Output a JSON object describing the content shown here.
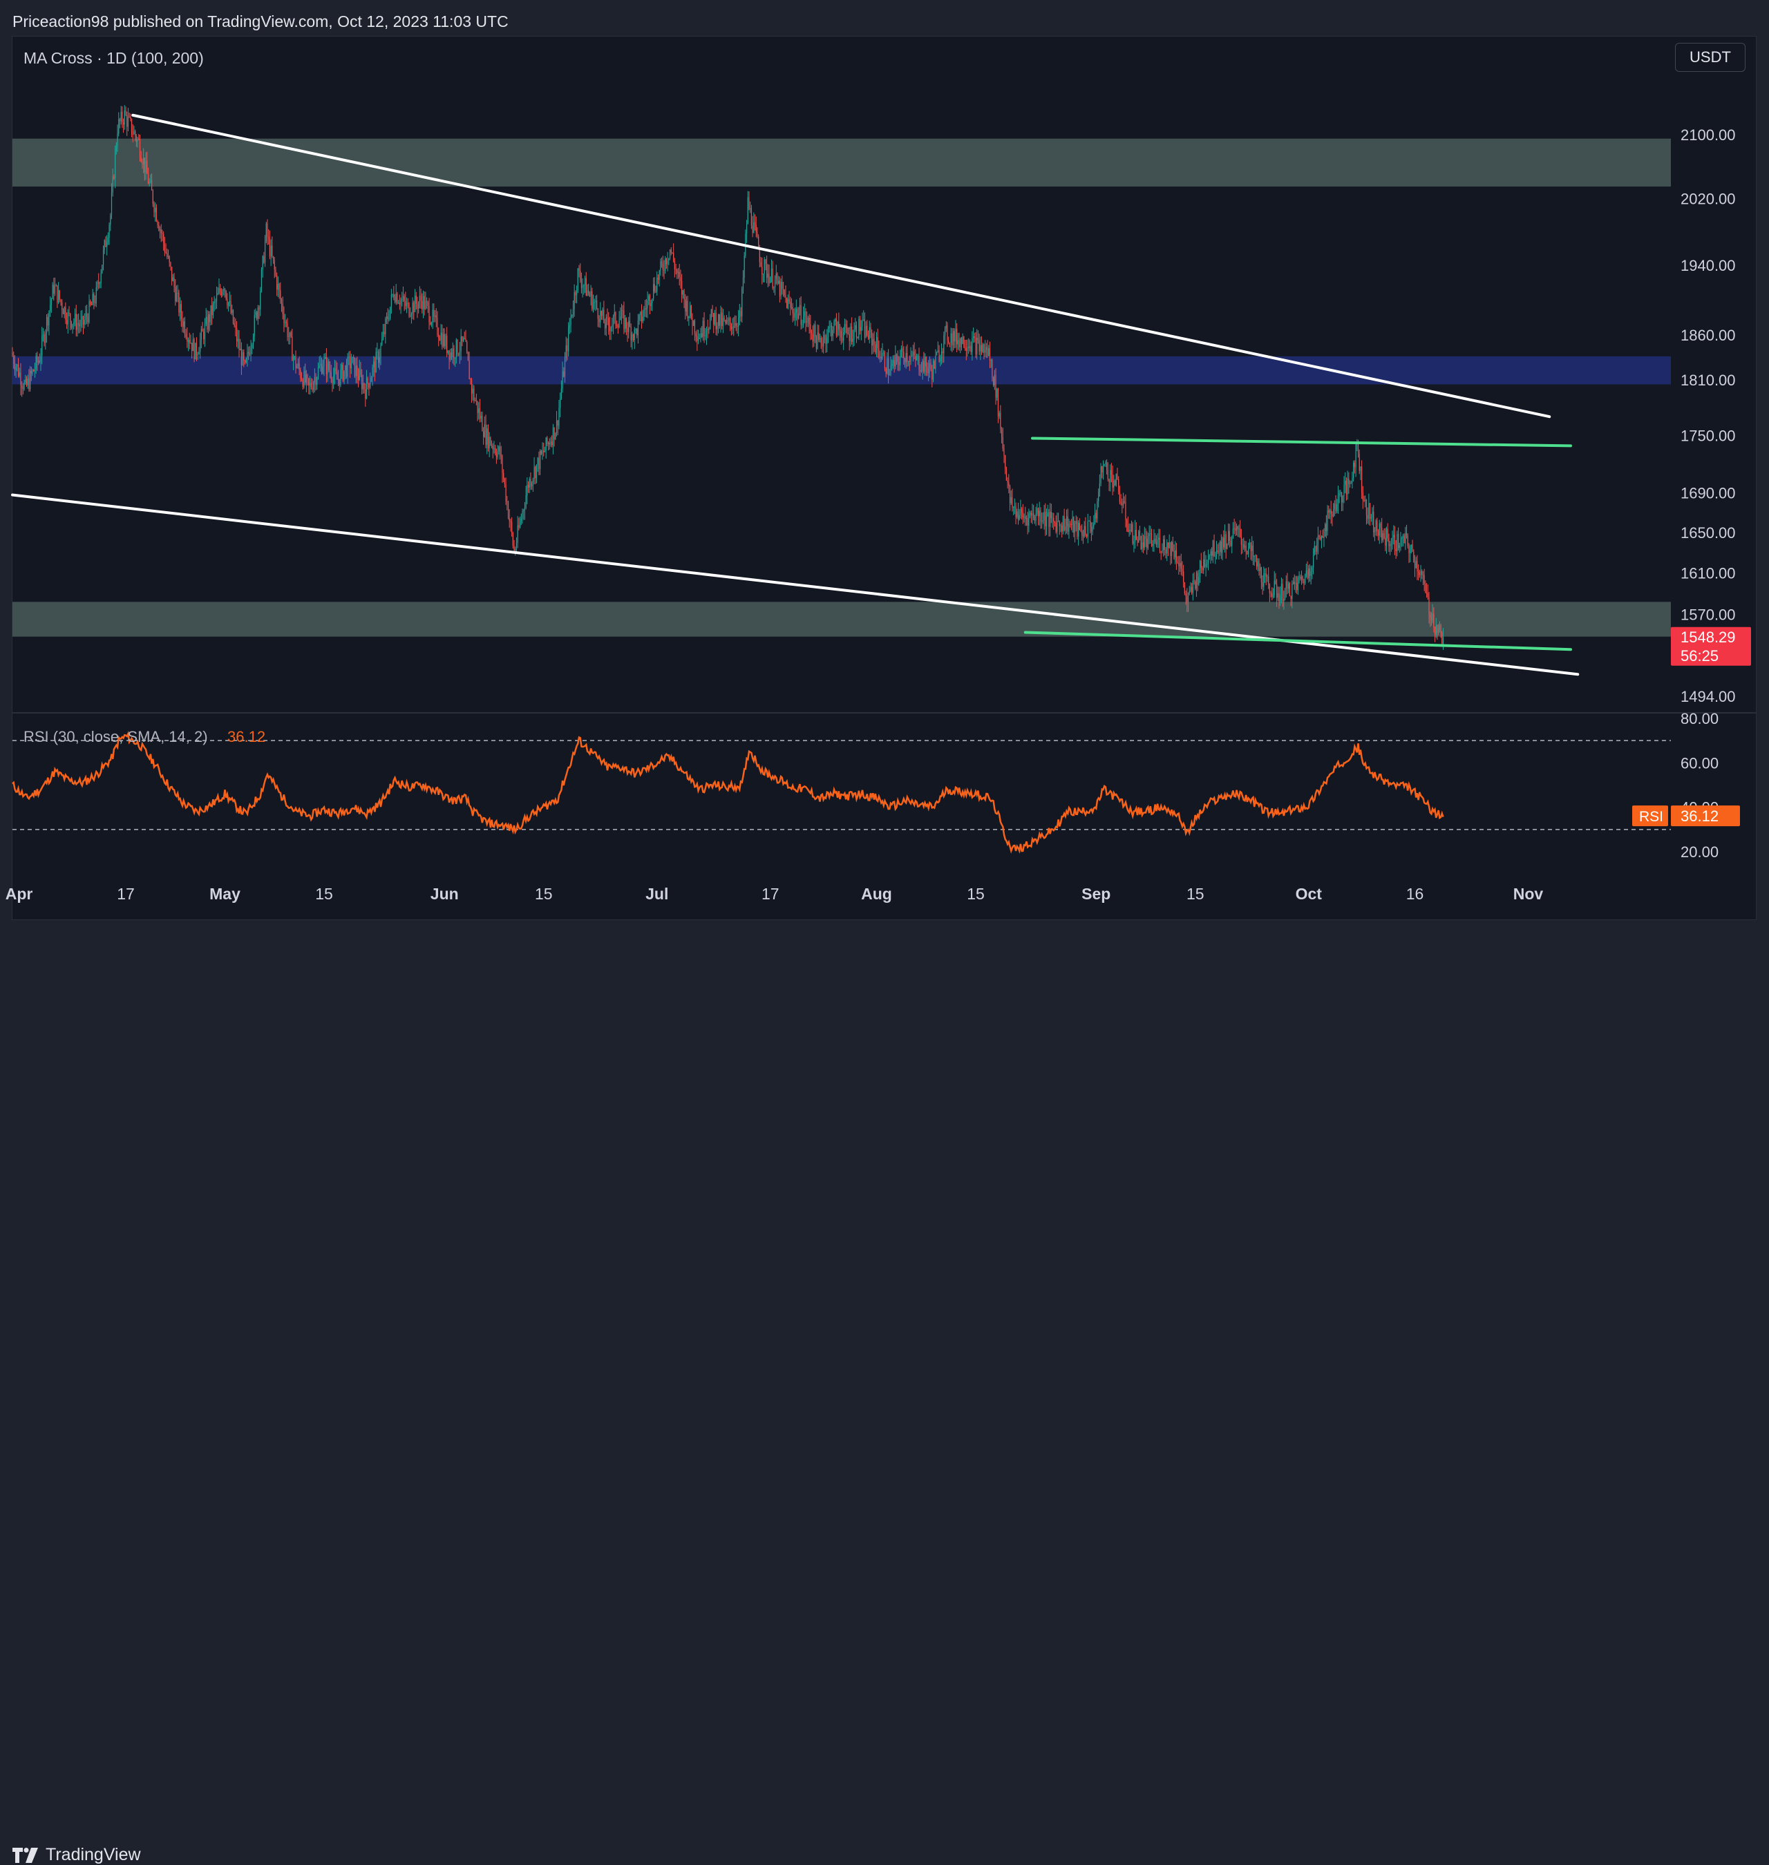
{
  "header": {
    "publisher": "Priceaction98 published on TradingView.com, Oct 12, 2023 11:03 UTC"
  },
  "chart": {
    "indicator_label": "MA Cross · 1D (100, 200)",
    "currency": "USDT",
    "price_tag": {
      "value": "1548.29",
      "countdown": "56:25"
    },
    "rsi": {
      "label": "RSI (30, close, SMA, 14, 2)",
      "value": "36.12",
      "tag_label": "RSI",
      "tag_value": "36.12"
    }
  },
  "footer": {
    "brand": "TradingView"
  },
  "colors": {
    "background": "#131722",
    "candle_up": "#26a69a",
    "candle_down": "#ef5350",
    "rsi_line": "#f7631b",
    "zone_gray": "#4a5a58",
    "zone_blue": "#1e2a6e",
    "trendline": "#ffffff",
    "range_line": "#4ee08e",
    "price_tag": "#f23645"
  },
  "chart_data": {
    "type": "candlestick",
    "x_ticks": [
      "Apr",
      "17",
      "May",
      "15",
      "Jun",
      "15",
      "Jul",
      "17",
      "Aug",
      "15",
      "Sep",
      "15",
      "Oct",
      "16",
      "Nov"
    ],
    "price_axis": {
      "ticks": [
        "2100.00",
        "2020.00",
        "1940.00",
        "1860.00",
        "1810.00",
        "1750.00",
        "1690.00",
        "1650.00",
        "1610.00",
        "1570.00",
        "1494.00"
      ],
      "scale": "log"
    },
    "rsi_axis": {
      "ticks": [
        "80.00",
        "60.00",
        "40.00",
        "20.00"
      ],
      "range": [
        20,
        80
      ],
      "bands": [
        70,
        30
      ]
    },
    "anchors": [
      {
        "d": 0,
        "p": 1840,
        "r": 50
      },
      {
        "d": 2,
        "p": 1800,
        "r": 44
      },
      {
        "d": 4,
        "p": 1835,
        "r": 48
      },
      {
        "d": 6,
        "p": 1915,
        "r": 56
      },
      {
        "d": 8,
        "p": 1880,
        "r": 52
      },
      {
        "d": 10,
        "p": 1870,
        "r": 51
      },
      {
        "d": 12,
        "p": 1905,
        "r": 55
      },
      {
        "d": 14,
        "p": 2000,
        "r": 62
      },
      {
        "d": 15,
        "p": 2110,
        "r": 70
      },
      {
        "d": 16,
        "p": 2125,
        "r": 72
      },
      {
        "d": 18,
        "p": 2090,
        "r": 68
      },
      {
        "d": 20,
        "p": 2020,
        "r": 60
      },
      {
        "d": 22,
        "p": 1950,
        "r": 50
      },
      {
        "d": 24,
        "p": 1880,
        "r": 42
      },
      {
        "d": 26,
        "p": 1840,
        "r": 38
      },
      {
        "d": 28,
        "p": 1880,
        "r": 41
      },
      {
        "d": 30,
        "p": 1920,
        "r": 46
      },
      {
        "d": 32,
        "p": 1850,
        "r": 39
      },
      {
        "d": 33,
        "p": 1820,
        "r": 37
      },
      {
        "d": 35,
        "p": 1900,
        "r": 46
      },
      {
        "d": 36,
        "p": 1980,
        "r": 55
      },
      {
        "d": 38,
        "p": 1900,
        "r": 45
      },
      {
        "d": 40,
        "p": 1830,
        "r": 38
      },
      {
        "d": 42,
        "p": 1800,
        "r": 36
      },
      {
        "d": 44,
        "p": 1830,
        "r": 39
      },
      {
        "d": 46,
        "p": 1810,
        "r": 37
      },
      {
        "d": 48,
        "p": 1830,
        "r": 40
      },
      {
        "d": 50,
        "p": 1800,
        "r": 37
      },
      {
        "d": 52,
        "p": 1840,
        "r": 42
      },
      {
        "d": 54,
        "p": 1910,
        "r": 52
      },
      {
        "d": 56,
        "p": 1890,
        "r": 49
      },
      {
        "d": 58,
        "p": 1900,
        "r": 50
      },
      {
        "d": 60,
        "p": 1870,
        "r": 47
      },
      {
        "d": 62,
        "p": 1840,
        "r": 43
      },
      {
        "d": 64,
        "p": 1850,
        "r": 44
      },
      {
        "d": 65,
        "p": 1800,
        "r": 38
      },
      {
        "d": 67,
        "p": 1750,
        "r": 33
      },
      {
        "d": 69,
        "p": 1730,
        "r": 32
      },
      {
        "d": 71,
        "p": 1630,
        "r": 30
      },
      {
        "d": 73,
        "p": 1700,
        "r": 36
      },
      {
        "d": 75,
        "p": 1730,
        "r": 40
      },
      {
        "d": 77,
        "p": 1760,
        "r": 44
      },
      {
        "d": 79,
        "p": 1880,
        "r": 62
      },
      {
        "d": 80,
        "p": 1930,
        "r": 70
      },
      {
        "d": 82,
        "p": 1900,
        "r": 64
      },
      {
        "d": 84,
        "p": 1870,
        "r": 58
      },
      {
        "d": 86,
        "p": 1880,
        "r": 58
      },
      {
        "d": 88,
        "p": 1860,
        "r": 55
      },
      {
        "d": 90,
        "p": 1900,
        "r": 58
      },
      {
        "d": 92,
        "p": 1940,
        "r": 62
      },
      {
        "d": 93,
        "p": 1960,
        "r": 62
      },
      {
        "d": 95,
        "p": 1900,
        "r": 55
      },
      {
        "d": 97,
        "p": 1860,
        "r": 48
      },
      {
        "d": 99,
        "p": 1880,
        "r": 50
      },
      {
        "d": 101,
        "p": 1870,
        "r": 49
      },
      {
        "d": 103,
        "p": 1880,
        "r": 50
      },
      {
        "d": 104,
        "p": 2015,
        "r": 66
      },
      {
        "d": 106,
        "p": 1940,
        "r": 56
      },
      {
        "d": 108,
        "p": 1920,
        "r": 53
      },
      {
        "d": 110,
        "p": 1890,
        "r": 49
      },
      {
        "d": 112,
        "p": 1880,
        "r": 48
      },
      {
        "d": 114,
        "p": 1850,
        "r": 44
      },
      {
        "d": 116,
        "p": 1870,
        "r": 46
      },
      {
        "d": 118,
        "p": 1860,
        "r": 45
      },
      {
        "d": 120,
        "p": 1870,
        "r": 46
      },
      {
        "d": 122,
        "p": 1850,
        "r": 44
      },
      {
        "d": 124,
        "p": 1820,
        "r": 40
      },
      {
        "d": 126,
        "p": 1840,
        "r": 43
      },
      {
        "d": 128,
        "p": 1830,
        "r": 41
      },
      {
        "d": 130,
        "p": 1820,
        "r": 40
      },
      {
        "d": 132,
        "p": 1860,
        "r": 48
      },
      {
        "d": 134,
        "p": 1855,
        "r": 47
      },
      {
        "d": 136,
        "p": 1850,
        "r": 46
      },
      {
        "d": 138,
        "p": 1840,
        "r": 44
      },
      {
        "d": 139,
        "p": 1800,
        "r": 38
      },
      {
        "d": 140,
        "p": 1740,
        "r": 28
      },
      {
        "d": 141,
        "p": 1680,
        "r": 22
      },
      {
        "d": 142,
        "p": 1670,
        "r": 21
      },
      {
        "d": 143,
        "p": 1665,
        "r": 23
      },
      {
        "d": 145,
        "p": 1670,
        "r": 26
      },
      {
        "d": 147,
        "p": 1660,
        "r": 30
      },
      {
        "d": 149,
        "p": 1660,
        "r": 38
      },
      {
        "d": 151,
        "p": 1650,
        "r": 38
      },
      {
        "d": 153,
        "p": 1660,
        "r": 40
      },
      {
        "d": 154,
        "p": 1720,
        "r": 48
      },
      {
        "d": 156,
        "p": 1700,
        "r": 44
      },
      {
        "d": 158,
        "p": 1650,
        "r": 38
      },
      {
        "d": 160,
        "p": 1640,
        "r": 38
      },
      {
        "d": 162,
        "p": 1640,
        "r": 40
      },
      {
        "d": 164,
        "p": 1635,
        "r": 38
      },
      {
        "d": 165,
        "p": 1620,
        "r": 34
      },
      {
        "d": 166,
        "p": 1580,
        "r": 28
      },
      {
        "d": 167,
        "p": 1600,
        "r": 35
      },
      {
        "d": 169,
        "p": 1630,
        "r": 42
      },
      {
        "d": 171,
        "p": 1640,
        "r": 45
      },
      {
        "d": 173,
        "p": 1650,
        "r": 46
      },
      {
        "d": 175,
        "p": 1630,
        "r": 43
      },
      {
        "d": 177,
        "p": 1600,
        "r": 38
      },
      {
        "d": 179,
        "p": 1590,
        "r": 37
      },
      {
        "d": 181,
        "p": 1595,
        "r": 39
      },
      {
        "d": 183,
        "p": 1610,
        "r": 41
      },
      {
        "d": 185,
        "p": 1650,
        "r": 50
      },
      {
        "d": 187,
        "p": 1680,
        "r": 58
      },
      {
        "d": 189,
        "p": 1700,
        "r": 64
      },
      {
        "d": 190,
        "p": 1740,
        "r": 67
      },
      {
        "d": 191,
        "p": 1680,
        "r": 58
      },
      {
        "d": 193,
        "p": 1650,
        "r": 53
      },
      {
        "d": 195,
        "p": 1640,
        "r": 50
      },
      {
        "d": 197,
        "p": 1640,
        "r": 49
      },
      {
        "d": 199,
        "p": 1610,
        "r": 44
      },
      {
        "d": 200,
        "p": 1580,
        "r": 40
      },
      {
        "d": 201,
        "p": 1560,
        "r": 37
      },
      {
        "d": 202,
        "p": 1550,
        "r": 36
      }
    ],
    "zones": [
      {
        "kind": "resistance",
        "from": 2035,
        "to": 2095
      },
      {
        "kind": "blue",
        "from": 1805,
        "to": 1836
      },
      {
        "kind": "support",
        "from": 1549,
        "to": 1582
      }
    ],
    "trendlines": [
      {
        "kind": "descending-upper",
        "from": {
          "d": 17,
          "p": 2125
        },
        "to": {
          "d": 217,
          "p": 1770
        }
      },
      {
        "kind": "descending-lower",
        "from": {
          "d": 0,
          "p": 1688
        },
        "to": {
          "d": 221,
          "p": 1514
        }
      },
      {
        "kind": "range-top",
        "from": {
          "d": 144,
          "p": 1747
        },
        "to": {
          "d": 220,
          "p": 1739
        }
      },
      {
        "kind": "range-bottom",
        "from": {
          "d": 143,
          "p": 1553
        },
        "to": {
          "d": 220,
          "p": 1537
        }
      }
    ],
    "last_price": 1548.29
  }
}
